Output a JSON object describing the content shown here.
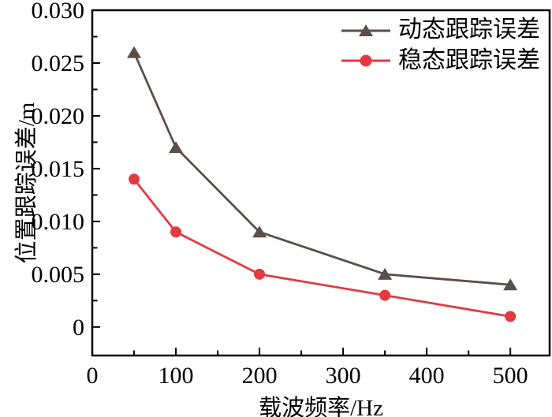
{
  "chart_data": {
    "type": "line",
    "x": [
      50,
      100,
      200,
      350,
      500
    ],
    "series": [
      {
        "name": "动态跟踪误差",
        "marker": "triangle",
        "color": "#5A4F4B",
        "values": [
          0.026,
          0.017,
          0.009,
          0.005,
          0.004
        ]
      },
      {
        "name": "稳态跟踪误差",
        "marker": "circle",
        "color": "#E13B40",
        "values": [
          0.014,
          0.009,
          0.005,
          0.003,
          0.001
        ]
      }
    ],
    "title": "",
    "xlabel": "载波频率/Hz",
    "ylabel": "位置跟踪误差/m",
    "xlim": [
      0,
      547
    ],
    "ylim": [
      -0.0027,
      0.03
    ],
    "x_ticks": [
      0,
      100,
      200,
      300,
      400,
      500
    ],
    "x_tick_labels": [
      "0",
      "100",
      "200",
      "300",
      "400",
      "500"
    ],
    "x_minor_ticks": [
      50,
      150,
      250,
      350,
      450
    ],
    "y_ticks": [
      0,
      0.005,
      0.01,
      0.015,
      0.02,
      0.025,
      0.03
    ],
    "y_tick_labels": [
      "0",
      "0.005",
      "0.010",
      "0.015",
      "0.020",
      "0.025",
      "0.030"
    ],
    "y_minor_ticks": [
      0.0025,
      0.0075,
      0.0125,
      0.0175,
      0.0225,
      0.0275
    ],
    "grid": false,
    "legend_position": "top-right",
    "axis_color": "#000000",
    "tick_label_font_size": 30
  }
}
